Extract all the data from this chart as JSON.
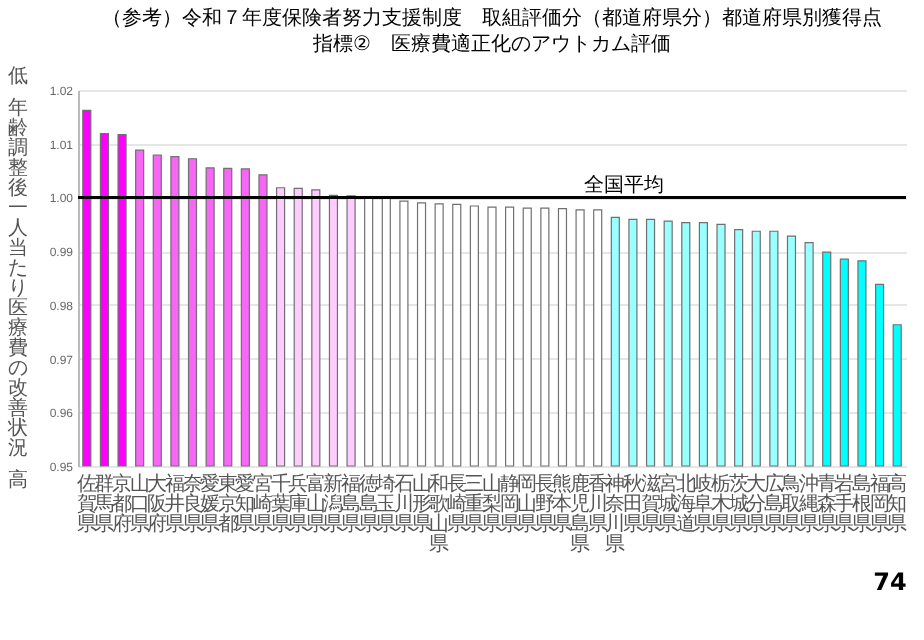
{
  "chart_data": {
    "type": "bar",
    "title": "（参考）令和７年度保険者努力支援制度　取組評価分（都道府県分）都道府県別獲得点",
    "subtitle": "指標②　医療費適正化のアウトカム評価",
    "ylabel": "年齢調整後一人当たり医療費の改善状況",
    "categories": [
      "佐賀県",
      "群馬県",
      "京都府",
      "山口県",
      "大阪府",
      "福井県",
      "奈良県",
      "愛媛県",
      "東京都",
      "愛知県",
      "宮崎県",
      "千葉県",
      "兵庫県",
      "富山県",
      "新潟県",
      "福島県",
      "徳島県",
      "埼玉県",
      "石川県",
      "山形県",
      "和歌山県",
      "長崎県",
      "三重県",
      "山梨県",
      "静岡県",
      "岡山県",
      "長野県",
      "熊本県",
      "鹿児島県",
      "香川県",
      "神奈川県",
      "秋田県",
      "滋賀県",
      "宮城県",
      "北海道",
      "岐阜県",
      "栃木県",
      "茨城県",
      "大分県",
      "広島県",
      "鳥取県",
      "沖縄県",
      "青森県",
      "岩手県",
      "島根県",
      "福岡県",
      "高知県"
    ],
    "values": [
      1.0162,
      1.0119,
      1.0117,
      1.0088,
      1.0079,
      1.0076,
      1.0072,
      1.0055,
      1.0054,
      1.0053,
      1.0042,
      1.0018,
      1.0017,
      1.0014,
      1.0004,
      1.0003,
      1.0,
      0.9999,
      0.9993,
      0.999,
      0.9988,
      0.9987,
      0.9984,
      0.9982,
      0.9982,
      0.998,
      0.998,
      0.9979,
      0.9977,
      0.9977,
      0.9963,
      0.9959,
      0.9959,
      0.9956,
      0.9953,
      0.9953,
      0.995,
      0.994,
      0.9937,
      0.9937,
      0.9928,
      0.9916,
      0.9898,
      0.9885,
      0.9882,
      0.9838,
      0.9763
    ],
    "colors": [
      "#ff00ff",
      "#ff00ff",
      "#ff00ff",
      "#f766f7",
      "#f766f7",
      "#f766f7",
      "#f766f7",
      "#f766f7",
      "#f766f7",
      "#f766f7",
      "#f766f7",
      "#ffccff",
      "#ffccff",
      "#ffccff",
      "#ffccff",
      "#ffccff",
      "#ffffff",
      "#ffffff",
      "#ffffff",
      "#ffffff",
      "#ffffff",
      "#ffffff",
      "#ffffff",
      "#ffffff",
      "#ffffff",
      "#ffffff",
      "#ffffff",
      "#ffffff",
      "#ffffff",
      "#ffffff",
      "#99ffff",
      "#99ffff",
      "#99ffff",
      "#99ffff",
      "#99ffff",
      "#99ffff",
      "#99ffff",
      "#99ffff",
      "#99ffff",
      "#99ffff",
      "#99ffff",
      "#99ffff",
      "#00ffff",
      "#00ffff",
      "#00ffff",
      "#00ffff",
      "#00ffff"
    ],
    "ylim": [
      0.95,
      1.02
    ],
    "yticks": [
      {
        "value": 0.95,
        "label": "0.95"
      },
      {
        "value": 0.96,
        "label": "0.96"
      },
      {
        "value": 0.97,
        "label": "0.97"
      },
      {
        "value": 0.98,
        "label": "0.98"
      },
      {
        "value": 0.99,
        "label": "0.99"
      },
      {
        "value": 1.0,
        "label": "1.00"
      },
      {
        "value": 1.01,
        "label": "1.01"
      },
      {
        "value": 1.02,
        "label": "1.02"
      }
    ],
    "grid": "y",
    "ref_lines": [
      {
        "axis": "y",
        "value": 1.0,
        "label": "全国平均",
        "color": "#000000"
      }
    ],
    "annotations": [
      "低",
      "高",
      "74"
    ]
  }
}
